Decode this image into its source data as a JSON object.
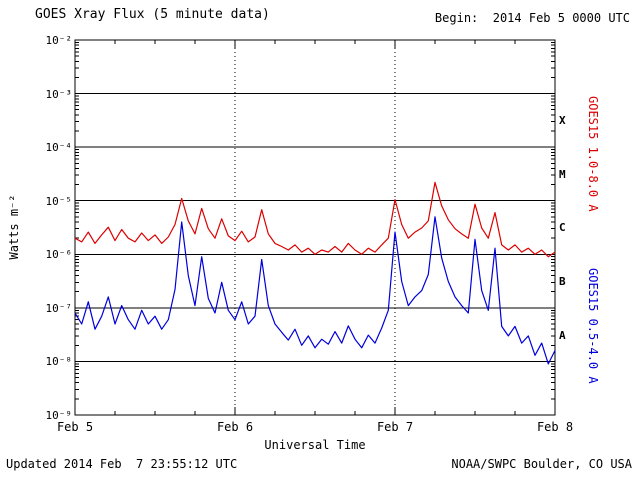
{
  "header": {
    "title": "GOES Xray Flux (5 minute data)",
    "begin_label": "Begin:  2014 Feb 5 0000 UTC"
  },
  "footer": {
    "updated": "Updated 2014 Feb  7 23:55:12 UTC",
    "credit": "NOAA/SWPC Boulder, CO USA"
  },
  "chart_data": {
    "type": "line",
    "title": "GOES Xray Flux (5 minute data)",
    "xlabel": "Universal Time",
    "ylabel": "Watts m⁻²",
    "x_tick_labels": [
      "Feb 5",
      "Feb 6",
      "Feb 7",
      "Feb 8"
    ],
    "y_tick_labels": [
      "10⁻²",
      "10⁻³",
      "10⁻⁴",
      "10⁻⁵",
      "10⁻⁶",
      "10⁻⁷",
      "10⁻⁸",
      "10⁻⁹"
    ],
    "flare_class_labels": [
      "X",
      "M",
      "C",
      "B",
      "A"
    ],
    "y_range_log10": [
      -9,
      -2
    ],
    "x_range_hours": [
      0,
      72
    ],
    "grid": {
      "horizontal": "solid line at each decade",
      "vertical": "dotted line at each day boundary"
    },
    "legend_position": "right, rotated",
    "series": [
      {
        "name": "GOES15 1.0-8.0 A",
        "color": "#dd0000",
        "x_hours": [
          0,
          1,
          2,
          3,
          4,
          5,
          6,
          7,
          8,
          9,
          10,
          11,
          12,
          13,
          14,
          15,
          16,
          17,
          18,
          19,
          20,
          21,
          22,
          23,
          24,
          25,
          26,
          27,
          28,
          29,
          30,
          31,
          32,
          33,
          34,
          35,
          36,
          37,
          38,
          39,
          40,
          41,
          42,
          43,
          44,
          45,
          46,
          47,
          48,
          49,
          50,
          51,
          52,
          53,
          54,
          55,
          56,
          57,
          58,
          59,
          60,
          61,
          62,
          63,
          64,
          65,
          66,
          67,
          68,
          69,
          70,
          71,
          72
        ],
        "flux": [
          2e-06,
          1.7e-06,
          2.6e-06,
          1.6e-06,
          2.3e-06,
          3.2e-06,
          1.8e-06,
          2.9e-06,
          2e-06,
          1.7e-06,
          2.5e-06,
          1.8e-06,
          2.3e-06,
          1.6e-06,
          2.1e-06,
          3.6e-06,
          1.1e-05,
          4.2e-06,
          2.4e-06,
          7.2e-06,
          3e-06,
          2e-06,
          4.6e-06,
          2.2e-06,
          1.8e-06,
          2.7e-06,
          1.7e-06,
          2.1e-06,
          6.8e-06,
          2.4e-06,
          1.6e-06,
          1.4e-06,
          1.2e-06,
          1.5e-06,
          1.1e-06,
          1.3e-06,
          1e-06,
          1.2e-06,
          1.1e-06,
          1.4e-06,
          1.1e-06,
          1.6e-06,
          1.2e-06,
          1e-06,
          1.3e-06,
          1.1e-06,
          1.5e-06,
          2e-06,
          1.05e-05,
          3.6e-06,
          2e-06,
          2.6e-06,
          3.1e-06,
          4.2e-06,
          2.2e-05,
          8e-06,
          4.4e-06,
          3e-06,
          2.4e-06,
          2e-06,
          8.6e-06,
          3.1e-06,
          2e-06,
          6e-06,
          1.5e-06,
          1.2e-06,
          1.5e-06,
          1.1e-06,
          1.3e-06,
          1e-06,
          1.2e-06,
          9e-07,
          1.1e-06
        ]
      },
      {
        "name": "GOES15 0.5-4.0 A",
        "color": "#0000dd",
        "x_hours": [
          0,
          1,
          2,
          3,
          4,
          5,
          6,
          7,
          8,
          9,
          10,
          11,
          12,
          13,
          14,
          15,
          16,
          17,
          18,
          19,
          20,
          21,
          22,
          23,
          24,
          25,
          26,
          27,
          28,
          29,
          30,
          31,
          32,
          33,
          34,
          35,
          36,
          37,
          38,
          39,
          40,
          41,
          42,
          43,
          44,
          45,
          46,
          47,
          48,
          49,
          50,
          51,
          52,
          53,
          54,
          55,
          56,
          57,
          58,
          59,
          60,
          61,
          62,
          63,
          64,
          65,
          66,
          67,
          68,
          69,
          70,
          71,
          72
        ],
        "flux": [
          8e-08,
          5e-08,
          1.3e-07,
          4e-08,
          7e-08,
          1.6e-07,
          5e-08,
          1.1e-07,
          6e-08,
          4e-08,
          9e-08,
          5e-08,
          7e-08,
          4e-08,
          6e-08,
          2.2e-07,
          4e-06,
          4e-07,
          1.1e-07,
          9e-07,
          1.5e-07,
          8e-08,
          3e-07,
          9e-08,
          6e-08,
          1.3e-07,
          5e-08,
          7e-08,
          8e-07,
          1.1e-07,
          5e-08,
          3.5e-08,
          2.5e-08,
          4e-08,
          2e-08,
          3e-08,
          1.8e-08,
          2.6e-08,
          2.1e-08,
          3.6e-08,
          2.2e-08,
          4.6e-08,
          2.6e-08,
          1.8e-08,
          3.1e-08,
          2.2e-08,
          4.2e-08,
          9e-08,
          2.6e-06,
          3.1e-07,
          1.1e-07,
          1.6e-07,
          2.1e-07,
          4.2e-07,
          5e-06,
          8.5e-07,
          3.1e-07,
          1.6e-07,
          1.1e-07,
          8e-08,
          1.9e-06,
          2.1e-07,
          9e-08,
          1.3e-06,
          4.5e-08,
          3e-08,
          4.5e-08,
          2.2e-08,
          3e-08,
          1.3e-08,
          2.2e-08,
          9e-09,
          1.6e-08
        ]
      }
    ]
  }
}
